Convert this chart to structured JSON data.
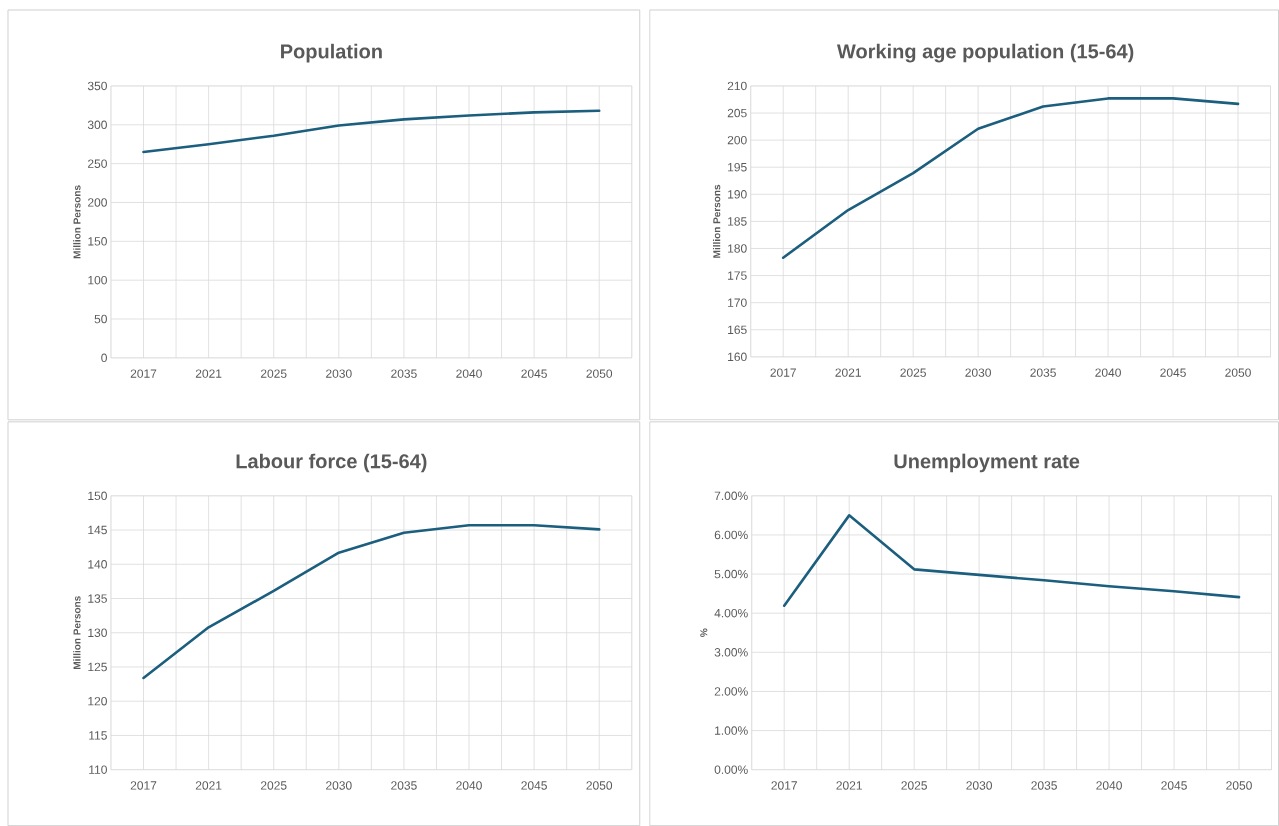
{
  "chart_data": [
    {
      "type": "line",
      "title": "Population",
      "ylabel": "Million Persons",
      "categories": [
        "2017",
        "2021",
        "2025",
        "2030",
        "2035",
        "2040",
        "2045",
        "2050"
      ],
      "values": [
        265,
        275,
        286,
        299,
        307,
        312,
        316,
        318
      ],
      "color": "#1b5e7e",
      "ylim": [
        0,
        350
      ],
      "yticks": [
        0,
        50,
        100,
        150,
        200,
        250,
        300,
        350
      ],
      "grid": true
    },
    {
      "type": "line",
      "title": "Working age population (15-64)",
      "ylabel": "Million Persons",
      "categories": [
        "2017",
        "2021",
        "2025",
        "2030",
        "2035",
        "2040",
        "2045",
        "2050"
      ],
      "values": [
        178.3,
        187.1,
        193.9,
        202.1,
        206.2,
        207.7,
        207.7,
        206.7
      ],
      "color": "#1b5e7e",
      "ylim": [
        160,
        210
      ],
      "yticks": [
        160,
        165,
        170,
        175,
        180,
        185,
        190,
        195,
        200,
        205,
        210
      ],
      "grid": true
    },
    {
      "type": "line",
      "title": "Labour force (15-64)",
      "ylabel": "Million Persons",
      "categories": [
        "2017",
        "2021",
        "2025",
        "2030",
        "2035",
        "2040",
        "2045",
        "2050"
      ],
      "values": [
        123.4,
        130.8,
        136.1,
        141.7,
        144.6,
        145.7,
        145.7,
        145.1
      ],
      "color": "#1b5e7e",
      "ylim": [
        110,
        150
      ],
      "yticks": [
        110,
        115,
        120,
        125,
        130,
        135,
        140,
        145,
        150
      ],
      "grid": true
    },
    {
      "type": "line",
      "title": "Unemployment rate",
      "ylabel": "%",
      "categories": [
        "2017",
        "2021",
        "2025",
        "2030",
        "2035",
        "2040",
        "2045",
        "2050"
      ],
      "values": [
        4.19,
        6.5,
        5.12,
        4.98,
        4.84,
        4.69,
        4.56,
        4.41
      ],
      "color": "#1b5e7e",
      "ylim": [
        0,
        7
      ],
      "yticks": [
        {
          "value": 0,
          "label": "0.00%"
        },
        {
          "value": 1,
          "label": "1.00%"
        },
        {
          "value": 2,
          "label": "2.00%"
        },
        {
          "value": 3,
          "label": "3.00%"
        },
        {
          "value": 4,
          "label": "4.00%"
        },
        {
          "value": 5,
          "label": "5.00%"
        },
        {
          "value": 6,
          "label": "6.00%"
        },
        {
          "value": 7,
          "label": "7.00%"
        }
      ],
      "grid": true
    }
  ]
}
